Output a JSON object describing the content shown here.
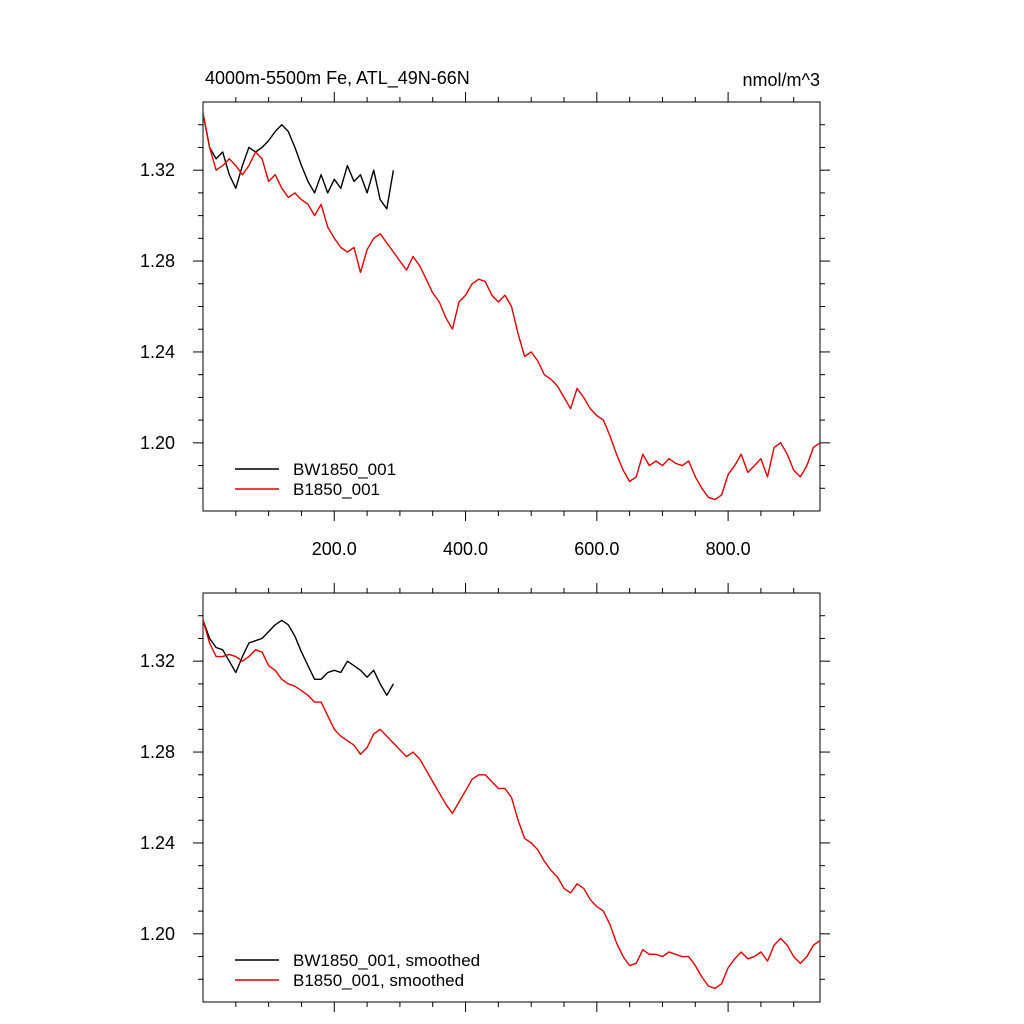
{
  "figure": {
    "title": "4000m-5500m Fe, ATL_49N-66N",
    "units": "nmol/m^3"
  },
  "chart_data": [
    {
      "type": "line",
      "title": "4000m-5500m Fe, ATL_49N-66N",
      "units": "nmol/m^3",
      "xlim": [
        0,
        940
      ],
      "ylim": [
        1.17,
        1.35
      ],
      "x_ticks": [
        200,
        400,
        600,
        800
      ],
      "x_tick_labels": [
        "200.0",
        "400.0",
        "600.0",
        "800.0"
      ],
      "y_ticks": [
        1.2,
        1.24,
        1.28,
        1.32
      ],
      "y_tick_labels": [
        "1.20",
        "1.24",
        "1.28",
        "1.32"
      ],
      "show_x_labels": true,
      "legend_position": "bottom-left",
      "series": [
        {
          "name": "BW1850_001",
          "color": "#000000",
          "x": [
            0,
            10,
            20,
            30,
            40,
            50,
            60,
            70,
            80,
            90,
            100,
            110,
            120,
            130,
            140,
            150,
            160,
            170,
            180,
            190,
            200,
            210,
            220,
            230,
            240,
            250,
            260,
            270,
            280,
            290
          ],
          "y": [
            1.345,
            1.33,
            1.325,
            1.328,
            1.318,
            1.312,
            1.322,
            1.33,
            1.328,
            1.33,
            1.333,
            1.337,
            1.34,
            1.337,
            1.33,
            1.322,
            1.315,
            1.31,
            1.318,
            1.31,
            1.316,
            1.312,
            1.322,
            1.315,
            1.318,
            1.31,
            1.32,
            1.307,
            1.303,
            1.32
          ]
        },
        {
          "name": "B1850_001",
          "color": "#e00000",
          "x": [
            0,
            10,
            20,
            30,
            40,
            50,
            60,
            70,
            80,
            90,
            100,
            110,
            120,
            130,
            140,
            150,
            160,
            170,
            180,
            190,
            200,
            210,
            220,
            230,
            240,
            250,
            260,
            270,
            280,
            290,
            300,
            310,
            320,
            330,
            340,
            350,
            360,
            370,
            380,
            390,
            400,
            410,
            420,
            430,
            440,
            450,
            460,
            470,
            480,
            490,
            500,
            510,
            520,
            530,
            540,
            550,
            560,
            570,
            580,
            590,
            600,
            610,
            620,
            630,
            640,
            650,
            660,
            670,
            680,
            690,
            700,
            710,
            720,
            730,
            740,
            750,
            760,
            770,
            780,
            790,
            800,
            810,
            820,
            830,
            840,
            850,
            860,
            870,
            880,
            890,
            900,
            910,
            920,
            930,
            940
          ],
          "y": [
            1.345,
            1.33,
            1.32,
            1.322,
            1.325,
            1.322,
            1.318,
            1.322,
            1.328,
            1.325,
            1.315,
            1.318,
            1.312,
            1.308,
            1.31,
            1.307,
            1.305,
            1.3,
            1.305,
            1.295,
            1.29,
            1.286,
            1.284,
            1.286,
            1.275,
            1.285,
            1.29,
            1.292,
            1.288,
            1.284,
            1.28,
            1.276,
            1.282,
            1.278,
            1.272,
            1.266,
            1.262,
            1.255,
            1.25,
            1.262,
            1.265,
            1.27,
            1.272,
            1.271,
            1.265,
            1.262,
            1.265,
            1.26,
            1.248,
            1.238,
            1.24,
            1.236,
            1.23,
            1.228,
            1.225,
            1.22,
            1.215,
            1.224,
            1.22,
            1.215,
            1.212,
            1.21,
            1.203,
            1.195,
            1.188,
            1.183,
            1.185,
            1.195,
            1.19,
            1.192,
            1.19,
            1.193,
            1.191,
            1.19,
            1.192,
            1.185,
            1.18,
            1.176,
            1.175,
            1.177,
            1.186,
            1.19,
            1.195,
            1.187,
            1.19,
            1.193,
            1.185,
            1.198,
            1.2,
            1.195,
            1.188,
            1.185,
            1.19,
            1.198,
            1.2
          ]
        }
      ]
    },
    {
      "type": "line",
      "xlim": [
        0,
        940
      ],
      "ylim": [
        1.17,
        1.35
      ],
      "x_ticks": [
        200,
        400,
        600,
        800
      ],
      "x_tick_labels": [],
      "y_ticks": [
        1.2,
        1.24,
        1.28,
        1.32
      ],
      "y_tick_labels": [
        "1.20",
        "1.24",
        "1.28",
        "1.32"
      ],
      "show_x_labels": false,
      "legend_position": "bottom-left",
      "series": [
        {
          "name": "BW1850_001, smoothed",
          "color": "#000000",
          "x": [
            0,
            10,
            20,
            30,
            40,
            50,
            60,
            70,
            80,
            90,
            100,
            110,
            120,
            130,
            140,
            150,
            160,
            170,
            180,
            190,
            200,
            210,
            220,
            230,
            240,
            250,
            260,
            270,
            280,
            290
          ],
          "y": [
            1.338,
            1.33,
            1.326,
            1.325,
            1.32,
            1.315,
            1.322,
            1.328,
            1.329,
            1.33,
            1.333,
            1.336,
            1.338,
            1.336,
            1.331,
            1.324,
            1.318,
            1.312,
            1.312,
            1.315,
            1.316,
            1.315,
            1.32,
            1.318,
            1.316,
            1.313,
            1.316,
            1.31,
            1.305,
            1.31
          ]
        },
        {
          "name": "B1850_001, smoothed",
          "color": "#e00000",
          "x": [
            0,
            10,
            20,
            30,
            40,
            50,
            60,
            70,
            80,
            90,
            100,
            110,
            120,
            130,
            140,
            150,
            160,
            170,
            180,
            190,
            200,
            210,
            220,
            230,
            240,
            250,
            260,
            270,
            280,
            290,
            300,
            310,
            320,
            330,
            340,
            350,
            360,
            370,
            380,
            390,
            400,
            410,
            420,
            430,
            440,
            450,
            460,
            470,
            480,
            490,
            500,
            510,
            520,
            530,
            540,
            550,
            560,
            570,
            580,
            590,
            600,
            610,
            620,
            630,
            640,
            650,
            660,
            670,
            680,
            690,
            700,
            710,
            720,
            730,
            740,
            750,
            760,
            770,
            780,
            790,
            800,
            810,
            820,
            830,
            840,
            850,
            860,
            870,
            880,
            890,
            900,
            910,
            920,
            930,
            940
          ],
          "y": [
            1.338,
            1.328,
            1.322,
            1.322,
            1.323,
            1.322,
            1.32,
            1.322,
            1.325,
            1.324,
            1.318,
            1.316,
            1.312,
            1.31,
            1.309,
            1.307,
            1.305,
            1.302,
            1.302,
            1.296,
            1.29,
            1.287,
            1.285,
            1.283,
            1.279,
            1.282,
            1.288,
            1.29,
            1.287,
            1.284,
            1.281,
            1.278,
            1.28,
            1.277,
            1.272,
            1.267,
            1.262,
            1.257,
            1.253,
            1.258,
            1.263,
            1.268,
            1.27,
            1.27,
            1.267,
            1.264,
            1.264,
            1.26,
            1.25,
            1.242,
            1.24,
            1.237,
            1.232,
            1.228,
            1.225,
            1.22,
            1.218,
            1.222,
            1.22,
            1.215,
            1.212,
            1.21,
            1.204,
            1.196,
            1.19,
            1.186,
            1.187,
            1.193,
            1.191,
            1.191,
            1.19,
            1.192,
            1.191,
            1.19,
            1.19,
            1.186,
            1.181,
            1.177,
            1.176,
            1.178,
            1.185,
            1.189,
            1.192,
            1.189,
            1.19,
            1.192,
            1.188,
            1.195,
            1.198,
            1.195,
            1.19,
            1.187,
            1.19,
            1.195,
            1.197
          ]
        }
      ]
    }
  ]
}
